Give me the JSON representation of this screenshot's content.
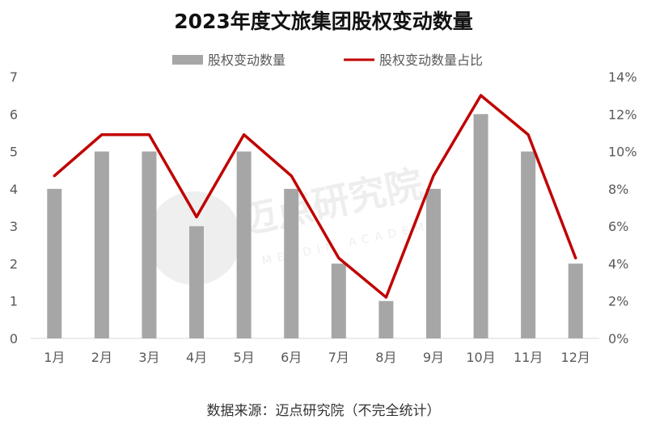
{
  "chart_data": {
    "type": "bar",
    "title": "2023年度文旅集团股权变动数量",
    "categories": [
      "1月",
      "2月",
      "3月",
      "4月",
      "5月",
      "6月",
      "7月",
      "8月",
      "9月",
      "10月",
      "11月",
      "12月"
    ],
    "series": [
      {
        "name": "股权变动数量",
        "kind": "bar",
        "axis": "left",
        "color": "#a6a6a6",
        "values": [
          4,
          5,
          5,
          3,
          5,
          4,
          2,
          1,
          4,
          6,
          5,
          2
        ]
      },
      {
        "name": "股权变动数量占比",
        "kind": "line",
        "axis": "right",
        "color": "#c00000",
        "values": [
          8.7,
          10.9,
          10.9,
          6.5,
          10.9,
          8.7,
          4.3,
          2.2,
          8.7,
          13.0,
          10.9,
          4.3
        ]
      }
    ],
    "y_left": {
      "range": [
        0,
        7
      ],
      "ticks": [
        "0",
        "1",
        "2",
        "3",
        "4",
        "5",
        "6",
        "7"
      ]
    },
    "y_right": {
      "range": [
        0,
        14
      ],
      "ticks": [
        "0%",
        "2%",
        "4%",
        "6%",
        "8%",
        "10%",
        "12%",
        "14%"
      ]
    },
    "grid": false,
    "legend_position": "top-center"
  },
  "watermark": {
    "text": "迈点研究院",
    "subtext": "MEADIN ACADEMY"
  },
  "footer": {
    "source": "数据来源：迈点研究院（不完全统计）"
  }
}
